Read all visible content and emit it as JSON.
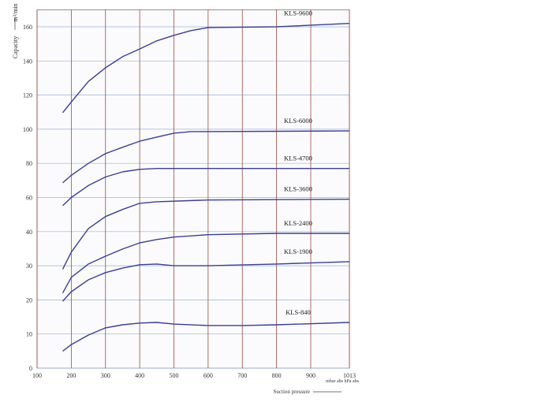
{
  "chart_data": {
    "type": "line",
    "y_label": "Capacity",
    "y_unit": "m³/min",
    "x_label": "Suction pressure",
    "x_unit": "mbar abs hPa abs",
    "color": "#3a3d9c",
    "grid": true,
    "y_scale": "piecewise",
    "xlim": [
      100,
      1013
    ],
    "xticks": [
      100,
      200,
      300,
      400,
      500,
      600,
      700,
      800,
      900,
      1013
    ],
    "ylim": [
      0,
      170
    ],
    "yticks": [
      0,
      10,
      20,
      30,
      40,
      60,
      80,
      100,
      120,
      140,
      160
    ],
    "series": [
      {
        "name": "KLS-9600",
        "x": [
          175,
          200,
          250,
          300,
          350,
          400,
          450,
          500,
          550,
          600,
          800,
          1013
        ],
        "values": [
          109.7,
          116,
          128,
          136,
          142.5,
          147,
          151.8,
          155,
          157.8,
          159.6,
          160,
          162
        ]
      },
      {
        "name": "KLS-6000",
        "x": [
          175,
          200,
          250,
          300,
          350,
          400,
          450,
          500,
          550,
          600,
          1013
        ],
        "values": [
          68.6,
          73,
          80,
          85.7,
          89.4,
          93,
          95.4,
          97.7,
          98.6,
          98.6,
          99
        ]
      },
      {
        "name": "KLS-4700",
        "x": [
          175,
          200,
          250,
          300,
          350,
          400,
          450,
          600,
          1013
        ],
        "values": [
          55.2,
          60,
          67,
          72,
          75,
          76.5,
          77,
          77,
          77
        ]
      },
      {
        "name": "KLS-3600",
        "x": [
          175,
          200,
          250,
          300,
          350,
          400,
          450,
          600,
          1013
        ],
        "values": [
          29,
          34,
          41.8,
          48.8,
          53,
          56.6,
          57.5,
          58.5,
          59
        ]
      },
      {
        "name": "KLS-2400",
        "x": [
          175,
          200,
          250,
          300,
          350,
          400,
          450,
          500,
          600,
          800,
          1013
        ],
        "values": [
          22,
          26.6,
          30.5,
          32.8,
          34.9,
          36.7,
          37.7,
          38.4,
          39.1,
          39.5,
          39.5
        ]
      },
      {
        "name": "KLS-1900",
        "x": [
          175,
          200,
          250,
          300,
          350,
          400,
          450,
          500,
          600,
          800,
          1013
        ],
        "values": [
          19.6,
          22.4,
          25.9,
          28,
          29.3,
          30.3,
          30.5,
          30,
          30,
          30.5,
          31.2
        ]
      },
      {
        "name": "KLS-840",
        "x": [
          175,
          200,
          250,
          300,
          350,
          400,
          450,
          500,
          600,
          700,
          800,
          1013
        ],
        "values": [
          5,
          6.9,
          9.7,
          11.8,
          12.7,
          13.2,
          13.4,
          12.9,
          12.5,
          12.5,
          12.7,
          13.4
        ]
      }
    ]
  }
}
